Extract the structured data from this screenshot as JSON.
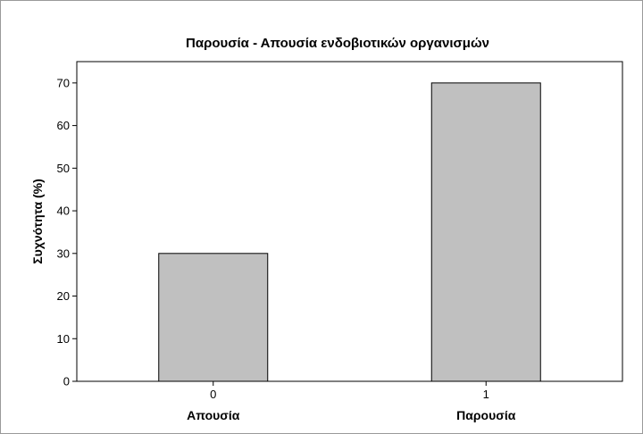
{
  "chart_data": {
    "type": "bar",
    "title": "Παρουσία - Απουσία ενδοβιοτικών οργανισμών",
    "xlabel": "",
    "ylabel": "Συχνότητα (%)",
    "categories": [
      "0",
      "1"
    ],
    "category_names": [
      "Απουσία",
      "Παρουσία"
    ],
    "values": [
      30,
      70
    ],
    "ylim": [
      0,
      75
    ],
    "yticks": [
      0,
      10,
      20,
      30,
      40,
      50,
      60,
      70
    ],
    "grid": false,
    "legend": "none",
    "colors": {
      "bar_fill": "#c0c0c0",
      "bar_stroke": "#000000",
      "plot_background": "#ffffff",
      "outer_border": "#9a9a9a"
    }
  }
}
